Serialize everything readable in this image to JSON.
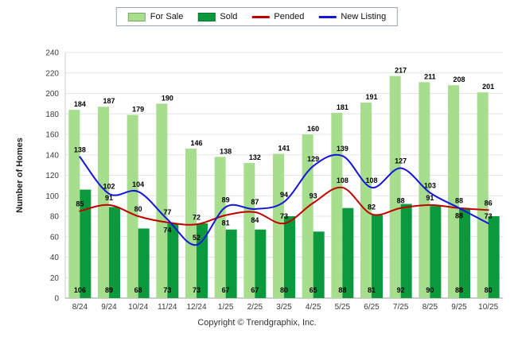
{
  "footer": {
    "copyright": "Copyright © Trendgraphix, Inc."
  },
  "chart_data": {
    "type": "bar",
    "subtype": "grouped-bars-with-lines",
    "title": "",
    "xlabel": "",
    "ylabel": "Number of Homes",
    "ylim": [
      0,
      240
    ],
    "yticks": [
      0,
      20,
      40,
      60,
      80,
      100,
      120,
      140,
      160,
      180,
      200,
      220,
      240
    ],
    "grid": true,
    "legend_position": "top",
    "categories": [
      "8/24",
      "9/24",
      "10/24",
      "11/24",
      "12/24",
      "1/25",
      "2/25",
      "3/25",
      "4/25",
      "5/25",
      "6/25",
      "7/25",
      "8/25",
      "9/25",
      "10/25"
    ],
    "series": [
      {
        "name": "For Sale",
        "type": "bar",
        "color": "#a7de8d",
        "values": [
          184,
          187,
          179,
          190,
          146,
          138,
          132,
          141,
          160,
          181,
          191,
          217,
          211,
          208,
          201
        ]
      },
      {
        "name": "Sold",
        "type": "bar",
        "color": "#0a9a3d",
        "values": [
          106,
          89,
          68,
          73,
          73,
          67,
          67,
          80,
          65,
          88,
          81,
          92,
          90,
          88,
          80
        ]
      },
      {
        "name": "Pended",
        "type": "line",
        "color": "#c00000",
        "values": [
          85,
          91,
          80,
          74,
          72,
          81,
          84,
          73,
          93,
          108,
          82,
          88,
          91,
          88,
          86
        ]
      },
      {
        "name": "New Listing",
        "type": "line",
        "color": "#1515dd",
        "values": [
          138,
          102,
          104,
          77,
          52,
          89,
          87,
          94,
          129,
          139,
          108,
          127,
          103,
          88,
          73
        ]
      }
    ],
    "colors": {
      "gridline": "#e4e4e4",
      "axis": "#999999",
      "axis_side": "#cccccc",
      "tick_text": "#3a3a3a",
      "value_text": "#000000"
    }
  }
}
